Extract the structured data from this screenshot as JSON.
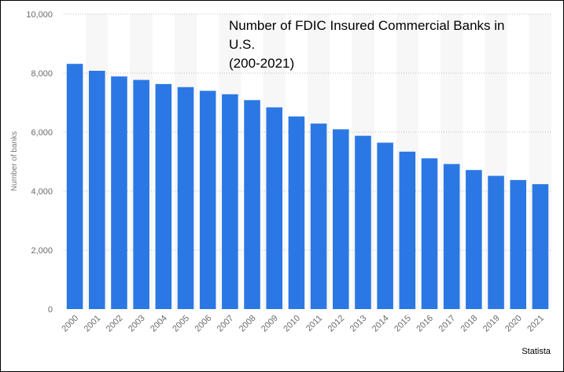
{
  "chart_data": {
    "type": "bar",
    "title": "Number of FDIC Insured Commercial Banks in\nU.S.\n(200-2021)",
    "ylabel": "Number of banks",
    "xlabel": "",
    "ylim": [
      0,
      10000
    ],
    "yticks": [
      "0",
      "2,000",
      "4,000",
      "6,000",
      "8,000",
      "10,000"
    ],
    "ytick_values": [
      0,
      2000,
      4000,
      6000,
      8000,
      10000
    ],
    "categories": [
      "2000",
      "2001",
      "2002",
      "2003",
      "2004",
      "2005",
      "2006",
      "2007",
      "2008",
      "2009",
      "2010",
      "2011",
      "2012",
      "2013",
      "2014",
      "2015",
      "2016",
      "2017",
      "2018",
      "2019",
      "2020",
      "2021"
    ],
    "values": [
      8315,
      8080,
      7888,
      7770,
      7631,
      7526,
      7401,
      7284,
      7086,
      6840,
      6530,
      6290,
      6096,
      5876,
      5642,
      5338,
      5112,
      4918,
      4715,
      4518,
      4377,
      4236
    ],
    "bar_color": "#2b78e4",
    "grid": true,
    "source": "Statista"
  }
}
